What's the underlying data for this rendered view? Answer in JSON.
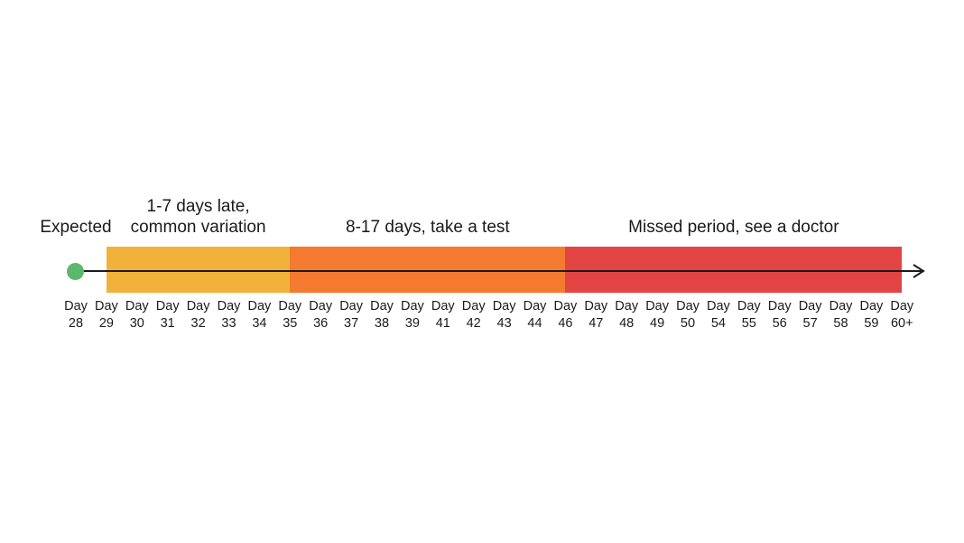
{
  "start": {
    "label": "Expected",
    "color": "#5cb86a"
  },
  "zones": [
    {
      "label": "1-7 days late,\ncommon variation",
      "color": "#f1b13b",
      "from_index": 1,
      "to_index": 7
    },
    {
      "label": "8-17 days, take a test",
      "color": "#f37a2f",
      "from_index": 7,
      "to_index": 16
    },
    {
      "label": "Missed period, see a doctor",
      "color": "#e24444",
      "from_index": 16,
      "to_index": 27
    }
  ],
  "ticks": [
    {
      "top": "Day",
      "bottom": "28"
    },
    {
      "top": "Day",
      "bottom": "29"
    },
    {
      "top": "Day",
      "bottom": "30"
    },
    {
      "top": "Day",
      "bottom": "31"
    },
    {
      "top": "Day",
      "bottom": "32"
    },
    {
      "top": "Day",
      "bottom": "33"
    },
    {
      "top": "Day",
      "bottom": "34"
    },
    {
      "top": "Day",
      "bottom": "35"
    },
    {
      "top": "Day",
      "bottom": "36"
    },
    {
      "top": "Day",
      "bottom": "37"
    },
    {
      "top": "Day",
      "bottom": "38"
    },
    {
      "top": "Day",
      "bottom": "39"
    },
    {
      "top": "Day",
      "bottom": "41"
    },
    {
      "top": "Day",
      "bottom": "42"
    },
    {
      "top": "Day",
      "bottom": "43"
    },
    {
      "top": "Day",
      "bottom": "44"
    },
    {
      "top": "Day",
      "bottom": "46"
    },
    {
      "top": "Day",
      "bottom": "47"
    },
    {
      "top": "Day",
      "bottom": "48"
    },
    {
      "top": "Day",
      "bottom": "49"
    },
    {
      "top": "Day",
      "bottom": "50"
    },
    {
      "top": "Day",
      "bottom": "54"
    },
    {
      "top": "Day",
      "bottom": "55"
    },
    {
      "top": "Day",
      "bottom": "56"
    },
    {
      "top": "Day",
      "bottom": "57"
    },
    {
      "top": "Day",
      "bottom": "58"
    },
    {
      "top": "Day",
      "bottom": "59"
    },
    {
      "top": "Day",
      "bottom": "60+"
    }
  ],
  "line_color": "#1a1a1a"
}
